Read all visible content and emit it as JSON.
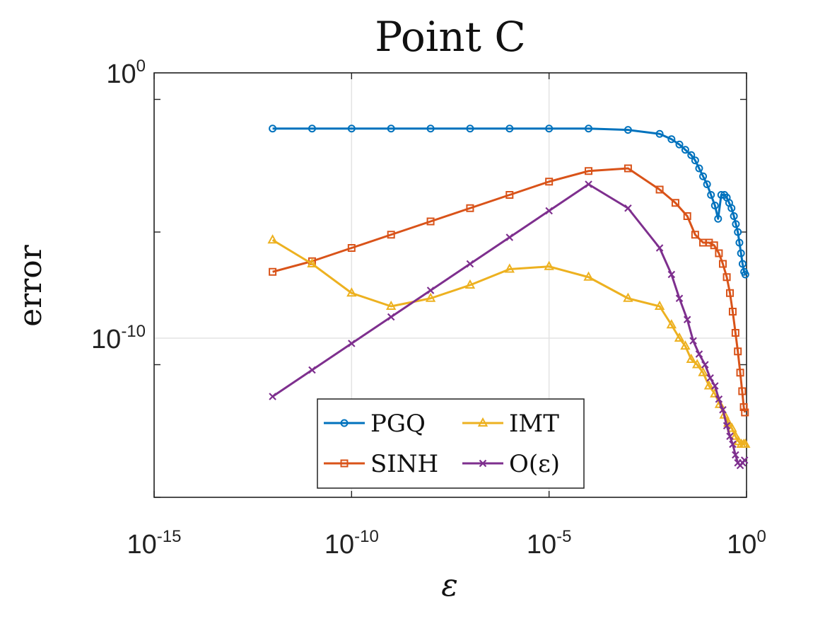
{
  "chart_data": {
    "type": "line",
    "title": "Point C",
    "xlabel": "ε",
    "ylabel": "error",
    "xscale": "log",
    "yscale": "log",
    "xlim_exp": [
      -15,
      0
    ],
    "ylim_exp": [
      -16,
      0
    ],
    "xticks": [
      {
        "base": "10",
        "exp": "-15"
      },
      {
        "base": "10",
        "exp": "-10"
      },
      {
        "base": "10",
        "exp": "-5"
      },
      {
        "base": "10",
        "exp": "0"
      }
    ],
    "yticks": [
      {
        "base": "10",
        "exp": "0"
      },
      {
        "base": "10",
        "exp": "-10"
      }
    ],
    "grid": true,
    "legend": {
      "placement": "bottom-center",
      "columns": 2
    },
    "series": [
      {
        "name": "PGQ",
        "color": "#0072BD",
        "marker": "circle",
        "x_log10": [
          -12,
          -11,
          -10,
          -9,
          -8,
          -7,
          -6,
          -5,
          -4,
          -3,
          -2.2,
          -1.9,
          -1.7,
          -1.55,
          -1.4,
          -1.3,
          -1.2,
          -1.1,
          -1.0,
          -0.9,
          -0.8,
          -0.72,
          -0.64,
          -0.56,
          -0.5,
          -0.44,
          -0.38,
          -0.32,
          -0.27,
          -0.22,
          -0.18,
          -0.14,
          -0.1,
          -0.06,
          -0.03
        ],
        "y_log10": [
          -2.1,
          -2.1,
          -2.1,
          -2.1,
          -2.1,
          -2.1,
          -2.1,
          -2.1,
          -2.1,
          -2.15,
          -2.3,
          -2.5,
          -2.7,
          -2.9,
          -3.1,
          -3.3,
          -3.6,
          -3.9,
          -4.2,
          -4.6,
          -5.0,
          -5.5,
          -4.6,
          -4.6,
          -4.7,
          -4.9,
          -5.1,
          -5.4,
          -5.7,
          -6.0,
          -6.4,
          -6.8,
          -7.2,
          -7.5,
          -7.6
        ]
      },
      {
        "name": "SINH",
        "color": "#D95319",
        "marker": "square",
        "x_log10": [
          -12,
          -11,
          -10,
          -9,
          -8,
          -7,
          -6,
          -5,
          -4,
          -3,
          -2.2,
          -1.8,
          -1.5,
          -1.3,
          -1.1,
          -0.95,
          -0.82,
          -0.7,
          -0.6,
          -0.5,
          -0.42,
          -0.35,
          -0.28,
          -0.22,
          -0.16,
          -0.11,
          -0.07,
          -0.04
        ],
        "y_log10": [
          -7.5,
          -7.1,
          -6.6,
          -6.1,
          -5.6,
          -5.1,
          -4.6,
          -4.1,
          -3.7,
          -3.6,
          -4.4,
          -4.9,
          -5.4,
          -6.1,
          -6.4,
          -6.4,
          -6.5,
          -6.8,
          -7.2,
          -7.7,
          -8.3,
          -9.0,
          -9.8,
          -10.5,
          -11.3,
          -12.0,
          -12.6,
          -12.8
        ]
      },
      {
        "name": "IMT",
        "color": "#EDB120",
        "marker": "triangle",
        "x_log10": [
          -12,
          -11,
          -10,
          -9,
          -8,
          -7,
          -6,
          -5,
          -4,
          -3,
          -2.2,
          -1.9,
          -1.7,
          -1.55,
          -1.4,
          -1.25,
          -1.1,
          -0.95,
          -0.8,
          -0.68,
          -0.56,
          -0.46,
          -0.37,
          -0.28,
          -0.2,
          -0.13,
          -0.07,
          -0.03
        ],
        "y_log10": [
          -6.3,
          -7.2,
          -8.3,
          -8.8,
          -8.5,
          -8.0,
          -7.4,
          -7.3,
          -7.7,
          -8.5,
          -8.8,
          -9.5,
          -10.0,
          -10.3,
          -10.8,
          -11.0,
          -11.3,
          -11.8,
          -12.1,
          -12.5,
          -12.9,
          -13.2,
          -13.4,
          -13.7,
          -13.9,
          -14.0,
          -14.0,
          -14.0
        ]
      },
      {
        "name": "O(ε)",
        "color": "#7E2F8E",
        "marker": "x",
        "x_log10": [
          -12,
          -11,
          -10,
          -9,
          -8,
          -7,
          -6,
          -5,
          -4,
          -3,
          -2.2,
          -1.9,
          -1.7,
          -1.5,
          -1.35,
          -1.2,
          -1.05,
          -0.92,
          -0.8,
          -0.7,
          -0.6,
          -0.5,
          -0.42,
          -0.35,
          -0.28,
          -0.22,
          -0.16,
          -0.1,
          -0.05
        ],
        "y_log10": [
          -12.2,
          -11.2,
          -10.2,
          -9.2,
          -8.2,
          -7.2,
          -6.2,
          -5.2,
          -4.2,
          -5.1,
          -6.6,
          -7.6,
          -8.5,
          -9.3,
          -10.1,
          -10.6,
          -11.0,
          -11.5,
          -11.8,
          -12.3,
          -12.7,
          -13.3,
          -13.7,
          -14.0,
          -14.4,
          -14.7,
          -14.8,
          -14.7,
          -14.6
        ]
      }
    ]
  }
}
